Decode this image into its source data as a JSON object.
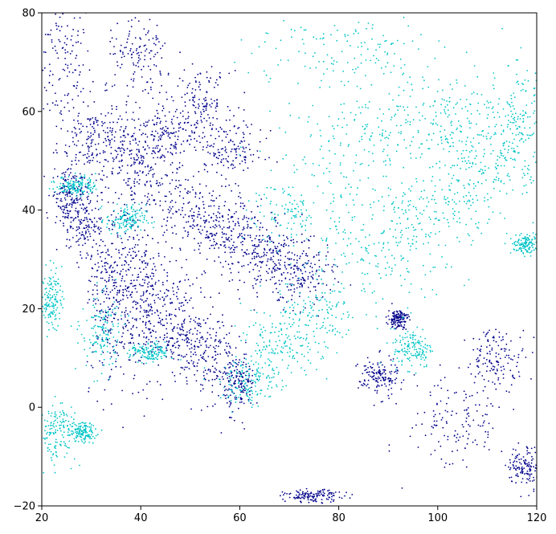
{
  "chart_data": {
    "type": "scatter",
    "title": "",
    "xlabel": "",
    "ylabel": "",
    "xlim": [
      20,
      120
    ],
    "ylim": [
      -20,
      80
    ],
    "x_ticks": [
      20,
      40,
      60,
      80,
      100,
      120
    ],
    "y_ticks": [
      -20,
      0,
      20,
      40,
      60,
      80
    ],
    "x_tick_labels": [
      "20",
      "40",
      "60",
      "80",
      "100",
      "120"
    ],
    "y_tick_labels": [
      "−20",
      "0",
      "20",
      "40",
      "60",
      "80"
    ],
    "grid": false,
    "legend": "none",
    "series": [
      {
        "color": "#00008b",
        "clusters": [
          {
            "x": 24,
            "y": 70,
            "sx": 3.0,
            "sy": 7.0
          },
          {
            "x": 30,
            "y": 55,
            "sx": 3.5,
            "sy": 4.0
          },
          {
            "x": 36,
            "y": 52,
            "sx": 4.0,
            "sy": 4.0
          },
          {
            "x": 42,
            "y": 47,
            "sx": 4.5,
            "sy": 3.5
          },
          {
            "x": 45,
            "y": 55,
            "sx": 4.0,
            "sy": 3.0
          },
          {
            "x": 50,
            "y": 40,
            "sx": 4.5,
            "sy": 3.5
          },
          {
            "x": 56,
            "y": 35,
            "sx": 5.0,
            "sy": 3.5
          },
          {
            "x": 62,
            "y": 33,
            "sx": 4.5,
            "sy": 3.5
          },
          {
            "x": 68,
            "y": 30,
            "sx": 4.0,
            "sy": 3.5
          },
          {
            "x": 72,
            "y": 26,
            "sx": 3.5,
            "sy": 3.0
          },
          {
            "x": 25,
            "y": 43,
            "sx": 1.5,
            "sy": 3.0
          },
          {
            "x": 28,
            "y": 38,
            "sx": 1.5,
            "sy": 4.0
          },
          {
            "x": 32,
            "y": 25,
            "sx": 1.5,
            "sy": 10.0
          },
          {
            "x": 35,
            "y": 25,
            "sx": 1.5,
            "sy": 9.0
          },
          {
            "x": 38,
            "y": 23,
            "sx": 1.5,
            "sy": 9.0
          },
          {
            "x": 41,
            "y": 22,
            "sx": 1.5,
            "sy": 8.0
          },
          {
            "x": 45,
            "y": 18,
            "sx": 2.0,
            "sy": 6.0
          },
          {
            "x": 50,
            "y": 15,
            "sx": 2.0,
            "sy": 5.0
          },
          {
            "x": 55,
            "y": 10,
            "sx": 2.0,
            "sy": 5.0
          },
          {
            "x": 60,
            "y": 5,
            "sx": 1.5,
            "sy": 3.0
          },
          {
            "x": 40,
            "y": 70,
            "sx": 3.5,
            "sy": 5.0
          },
          {
            "x": 52,
            "y": 62,
            "sx": 3.0,
            "sy": 3.0
          },
          {
            "x": 58,
            "y": 52,
            "sx": 3.5,
            "sy": 3.0
          },
          {
            "x": 104,
            "y": -3,
            "sx": 5.0,
            "sy": 5.0
          },
          {
            "x": 88,
            "y": 6,
            "sx": 2.0,
            "sy": 2.0
          },
          {
            "x": 75,
            "y": -18,
            "sx": 3.0,
            "sy": 0.6
          },
          {
            "x": 112,
            "y": 10,
            "sx": 3.0,
            "sy": 3.0
          },
          {
            "x": 118,
            "y": -12,
            "sx": 2.0,
            "sy": 2.0
          },
          {
            "x": 92,
            "y": 18,
            "sx": 1.0,
            "sy": 1.0
          }
        ]
      },
      {
        "color": "#00c5c7",
        "clusters": [
          {
            "x": 85,
            "y": 30,
            "sx": 7.0,
            "sy": 6.0
          },
          {
            "x": 95,
            "y": 38,
            "sx": 6.0,
            "sy": 6.0
          },
          {
            "x": 105,
            "y": 45,
            "sx": 5.0,
            "sy": 6.0
          },
          {
            "x": 112,
            "y": 52,
            "sx": 4.0,
            "sy": 6.0
          },
          {
            "x": 117,
            "y": 58,
            "sx": 2.5,
            "sy": 6.0
          },
          {
            "x": 75,
            "y": 18,
            "sx": 5.0,
            "sy": 4.0
          },
          {
            "x": 68,
            "y": 12,
            "sx": 4.0,
            "sy": 3.0
          },
          {
            "x": 62,
            "y": 5,
            "sx": 3.0,
            "sy": 2.5
          },
          {
            "x": 85,
            "y": 55,
            "sx": 8.0,
            "sy": 4.0
          },
          {
            "x": 100,
            "y": 60,
            "sx": 6.0,
            "sy": 4.0
          },
          {
            "x": 80,
            "y": 72,
            "sx": 10.0,
            "sy": 4.0
          },
          {
            "x": 72,
            "y": 40,
            "sx": 5.0,
            "sy": 4.0
          },
          {
            "x": 32,
            "y": 15,
            "sx": 2.0,
            "sy": 4.0
          },
          {
            "x": 23,
            "y": -5,
            "sx": 2.0,
            "sy": 3.0
          },
          {
            "x": 28,
            "y": -5,
            "sx": 1.5,
            "sy": 1.0
          },
          {
            "x": 22,
            "y": 22,
            "sx": 1.0,
            "sy": 3.0
          },
          {
            "x": 27,
            "y": 45,
            "sx": 2.0,
            "sy": 1.0
          },
          {
            "x": 118,
            "y": 33,
            "sx": 1.5,
            "sy": 1.0
          },
          {
            "x": 42,
            "y": 11,
            "sx": 2.0,
            "sy": 1.0
          },
          {
            "x": 37,
            "y": 38,
            "sx": 2.0,
            "sy": 1.5
          },
          {
            "x": 95,
            "y": 12,
            "sx": 2.0,
            "sy": 2.0
          }
        ]
      }
    ]
  }
}
